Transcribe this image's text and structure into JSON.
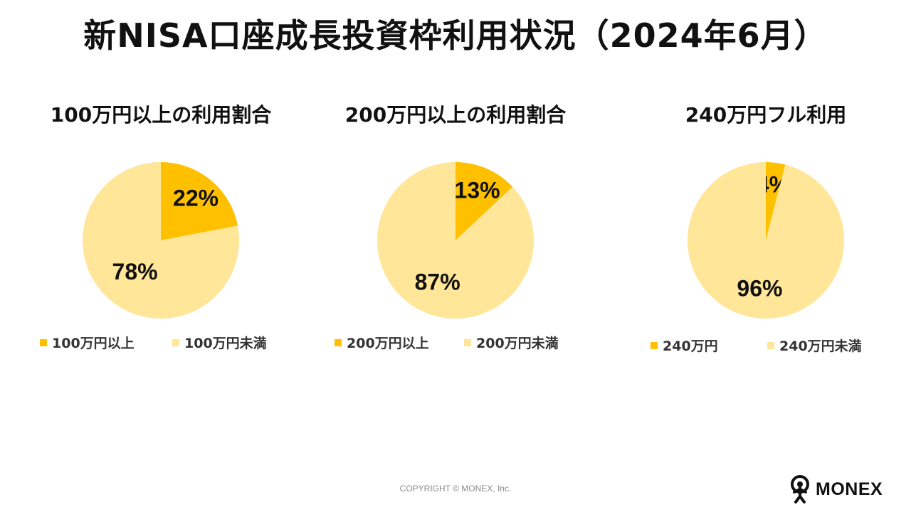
{
  "page": {
    "title": "新NISA口座成長投資枠利用状況（2024年6月）",
    "copyright": "COPYRIGHT © MONEX, Inc.",
    "brand": "MONEX"
  },
  "colors": {
    "primary_slice": "#FFC000",
    "secondary_slice": "#FFE699",
    "text": "#111111"
  },
  "chart_data": [
    {
      "type": "pie",
      "title": "100万円以上の利用割合",
      "categories": [
        "100万円以上",
        "100万円未満"
      ],
      "values": [
        22,
        78
      ],
      "value_labels": [
        "22%",
        "78%"
      ],
      "legend_position": "bottom"
    },
    {
      "type": "pie",
      "title": "200万円以上の利用割合",
      "categories": [
        "200万円以上",
        "200万円未満"
      ],
      "values": [
        13,
        87
      ],
      "value_labels": [
        "13%",
        "87%"
      ],
      "legend_position": "bottom"
    },
    {
      "type": "pie",
      "title": "240万円フル利用",
      "categories": [
        "240万円",
        "240万円未満"
      ],
      "values": [
        4,
        96
      ],
      "value_labels": [
        "4%",
        "96%"
      ],
      "legend_position": "bottom"
    }
  ]
}
